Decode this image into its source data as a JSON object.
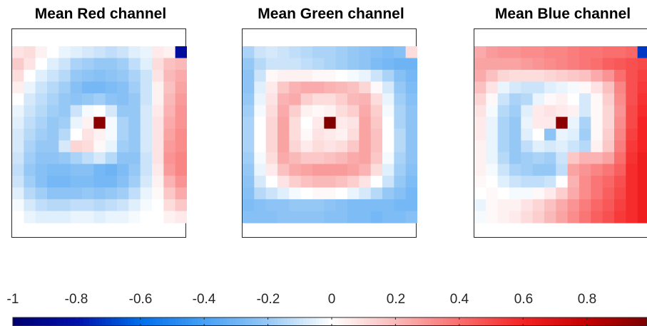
{
  "chart_data": {
    "type": "heatmap",
    "layout": "three panels, shared colorbar at bottom",
    "colormap": "diverging blue-white-red",
    "clim": [
      -1,
      1
    ],
    "panels": [
      {
        "title": "Mean Red channel",
        "grid": "15x15",
        "values": [
          [
            0.08,
            0.1,
            0.04,
            0.0,
            -0.04,
            -0.06,
            -0.08,
            -0.1,
            -0.12,
            -0.1,
            -0.06,
            -0.04,
            0.06,
            0.04,
            -0.85
          ],
          [
            0.15,
            0.08,
            0.0,
            -0.06,
            -0.1,
            -0.16,
            -0.18,
            -0.2,
            -0.2,
            -0.18,
            -0.12,
            -0.06,
            0.1,
            0.18,
            0.2
          ],
          [
            0.1,
            0.0,
            -0.06,
            -0.1,
            -0.14,
            -0.2,
            -0.22,
            -0.24,
            -0.22,
            -0.2,
            -0.16,
            -0.1,
            0.08,
            0.2,
            0.24
          ],
          [
            0.05,
            -0.04,
            -0.1,
            -0.14,
            -0.18,
            -0.24,
            -0.28,
            -0.28,
            -0.26,
            -0.24,
            -0.18,
            -0.1,
            0.04,
            0.18,
            0.26
          ],
          [
            0.0,
            -0.08,
            -0.12,
            -0.16,
            -0.2,
            -0.22,
            -0.2,
            -0.18,
            -0.22,
            -0.24,
            -0.2,
            -0.1,
            0.04,
            0.2,
            0.28
          ],
          [
            -0.04,
            -0.1,
            -0.14,
            -0.18,
            -0.2,
            -0.1,
            -0.02,
            0.0,
            -0.08,
            -0.2,
            -0.2,
            -0.08,
            0.06,
            0.22,
            0.3
          ],
          [
            -0.06,
            -0.12,
            -0.16,
            -0.2,
            -0.18,
            -0.04,
            0.04,
            0.95,
            -0.02,
            -0.16,
            -0.2,
            -0.08,
            0.08,
            0.24,
            0.3
          ],
          [
            -0.08,
            -0.14,
            -0.18,
            -0.2,
            -0.14,
            0.0,
            0.08,
            0.04,
            -0.02,
            -0.16,
            -0.2,
            -0.08,
            0.08,
            0.26,
            0.32
          ],
          [
            -0.08,
            -0.16,
            -0.2,
            -0.2,
            -0.08,
            0.12,
            0.1,
            0.02,
            -0.04,
            -0.18,
            -0.2,
            -0.08,
            0.08,
            0.28,
            0.32
          ],
          [
            -0.1,
            -0.18,
            -0.22,
            -0.22,
            -0.2,
            -0.16,
            -0.12,
            -0.08,
            -0.14,
            -0.22,
            -0.22,
            -0.1,
            0.08,
            0.3,
            0.34
          ],
          [
            -0.12,
            -0.2,
            -0.24,
            -0.26,
            -0.26,
            -0.24,
            -0.24,
            -0.28,
            -0.3,
            -0.26,
            -0.2,
            -0.1,
            0.06,
            0.28,
            0.34
          ],
          [
            -0.1,
            -0.18,
            -0.24,
            -0.28,
            -0.28,
            -0.26,
            -0.26,
            -0.28,
            -0.28,
            -0.24,
            -0.18,
            -0.08,
            0.04,
            0.22,
            0.3
          ],
          [
            -0.06,
            -0.14,
            -0.18,
            -0.22,
            -0.22,
            -0.22,
            -0.2,
            -0.22,
            -0.2,
            -0.18,
            -0.12,
            -0.04,
            0.02,
            0.16,
            0.24
          ],
          [
            -0.02,
            -0.08,
            -0.12,
            -0.14,
            -0.14,
            -0.12,
            -0.12,
            -0.14,
            -0.12,
            -0.1,
            -0.06,
            -0.02,
            0.0,
            0.1,
            0.16
          ],
          [
            0.0,
            -0.04,
            -0.06,
            -0.06,
            -0.06,
            -0.04,
            -0.04,
            -0.06,
            -0.04,
            -0.04,
            -0.02,
            0.0,
            0.0,
            0.04,
            0.06
          ]
        ]
      },
      {
        "title": "Mean Green channel",
        "grid": "15x15",
        "values": [
          [
            -0.16,
            -0.1,
            -0.08,
            -0.1,
            -0.12,
            -0.14,
            -0.16,
            -0.16,
            -0.18,
            -0.2,
            -0.22,
            -0.24,
            -0.26,
            -0.24,
            0.1
          ],
          [
            -0.2,
            -0.14,
            -0.1,
            -0.1,
            -0.1,
            -0.12,
            -0.14,
            -0.16,
            -0.18,
            -0.2,
            -0.22,
            -0.26,
            -0.28,
            -0.3,
            -0.3
          ],
          [
            -0.22,
            -0.1,
            0.02,
            0.04,
            0.04,
            0.04,
            0.02,
            0.02,
            0.0,
            -0.02,
            -0.04,
            -0.1,
            -0.16,
            -0.24,
            -0.28
          ],
          [
            -0.22,
            -0.06,
            0.06,
            0.16,
            0.22,
            0.24,
            0.24,
            0.22,
            0.2,
            0.18,
            0.12,
            0.02,
            -0.08,
            -0.2,
            -0.26
          ],
          [
            -0.2,
            -0.04,
            0.08,
            0.22,
            0.24,
            0.14,
            0.1,
            0.1,
            0.14,
            0.2,
            0.22,
            0.1,
            -0.04,
            -0.18,
            -0.24
          ],
          [
            -0.18,
            -0.02,
            0.1,
            0.24,
            0.14,
            0.04,
            0.02,
            0.04,
            0.1,
            0.14,
            0.24,
            0.14,
            -0.02,
            -0.16,
            -0.22
          ],
          [
            -0.16,
            0.0,
            0.12,
            0.26,
            0.1,
            0.0,
            0.06,
            0.98,
            0.06,
            0.08,
            0.26,
            0.16,
            0.0,
            -0.16,
            -0.22
          ],
          [
            -0.16,
            0.0,
            0.12,
            0.26,
            0.1,
            0.02,
            0.08,
            0.06,
            0.04,
            0.1,
            0.26,
            0.18,
            0.0,
            -0.14,
            -0.22
          ],
          [
            -0.16,
            0.0,
            0.12,
            0.26,
            0.12,
            0.06,
            0.1,
            0.08,
            0.1,
            0.16,
            0.26,
            0.18,
            0.0,
            -0.14,
            -0.22
          ],
          [
            -0.18,
            -0.02,
            0.1,
            0.24,
            0.2,
            0.16,
            0.16,
            0.18,
            0.2,
            0.24,
            0.26,
            0.16,
            -0.02,
            -0.16,
            -0.22
          ],
          [
            -0.2,
            -0.04,
            0.06,
            0.18,
            0.24,
            0.26,
            0.28,
            0.28,
            0.28,
            0.26,
            0.22,
            0.1,
            -0.06,
            -0.18,
            -0.24
          ],
          [
            -0.22,
            -0.08,
            0.0,
            0.08,
            0.14,
            0.18,
            0.2,
            0.2,
            0.18,
            0.14,
            0.08,
            0.0,
            -0.1,
            -0.2,
            -0.26
          ],
          [
            -0.24,
            -0.14,
            -0.1,
            -0.06,
            -0.02,
            0.0,
            0.02,
            0.02,
            0.0,
            -0.04,
            -0.08,
            -0.14,
            -0.2,
            -0.24,
            -0.28
          ],
          [
            -0.26,
            -0.24,
            -0.22,
            -0.22,
            -0.2,
            -0.2,
            -0.2,
            -0.22,
            -0.24,
            -0.26,
            -0.26,
            -0.26,
            -0.26,
            -0.28,
            -0.28
          ],
          [
            -0.24,
            -0.24,
            -0.24,
            -0.22,
            -0.22,
            -0.22,
            -0.22,
            -0.24,
            -0.24,
            -0.26,
            -0.26,
            -0.28,
            -0.26,
            -0.26,
            -0.24
          ]
        ]
      },
      {
        "title": "Mean Blue channel",
        "grid": "15x15",
        "values": [
          [
            0.24,
            0.28,
            0.3,
            0.3,
            0.32,
            0.32,
            0.34,
            0.34,
            0.36,
            0.38,
            0.38,
            0.4,
            0.4,
            0.42,
            -0.72
          ],
          [
            0.26,
            0.26,
            0.26,
            0.26,
            0.28,
            0.3,
            0.32,
            0.34,
            0.36,
            0.38,
            0.4,
            0.44,
            0.46,
            0.48,
            0.5
          ],
          [
            0.24,
            0.18,
            0.12,
            0.1,
            0.1,
            0.1,
            0.12,
            0.14,
            0.16,
            0.18,
            0.24,
            0.3,
            0.4,
            0.48,
            0.52
          ],
          [
            0.18,
            0.08,
            -0.04,
            -0.08,
            -0.1,
            -0.1,
            -0.06,
            -0.04,
            -0.02,
            0.02,
            0.08,
            0.18,
            0.34,
            0.48,
            0.54
          ],
          [
            0.12,
            0.02,
            -0.1,
            -0.16,
            -0.14,
            -0.04,
            0.02,
            0.04,
            0.0,
            -0.08,
            0.02,
            0.14,
            0.32,
            0.48,
            0.56
          ],
          [
            0.08,
            -0.02,
            -0.14,
            -0.18,
            -0.06,
            0.06,
            0.08,
            0.06,
            0.04,
            -0.08,
            0.02,
            0.12,
            0.3,
            0.5,
            0.58
          ],
          [
            0.06,
            -0.04,
            -0.16,
            -0.2,
            -0.04,
            0.06,
            0.06,
            0.95,
            -0.04,
            -0.16,
            0.02,
            0.12,
            0.32,
            0.5,
            0.6
          ],
          [
            0.06,
            -0.04,
            -0.16,
            -0.2,
            -0.06,
            0.0,
            -0.22,
            -0.04,
            -0.06,
            -0.18,
            0.02,
            0.14,
            0.34,
            0.52,
            0.6
          ],
          [
            0.04,
            -0.04,
            -0.16,
            -0.2,
            -0.12,
            -0.06,
            -0.08,
            -0.06,
            -0.1,
            -0.14,
            0.04,
            0.16,
            0.36,
            0.54,
            0.6
          ],
          [
            0.04,
            -0.04,
            -0.14,
            -0.2,
            -0.18,
            -0.16,
            -0.18,
            -0.1,
            0.16,
            0.22,
            0.22,
            0.26,
            0.4,
            0.56,
            0.62
          ],
          [
            0.04,
            -0.02,
            -0.1,
            -0.16,
            -0.18,
            -0.2,
            -0.2,
            -0.12,
            0.26,
            0.3,
            0.34,
            0.38,
            0.44,
            0.58,
            0.62
          ],
          [
            0.02,
            0.0,
            -0.06,
            -0.1,
            -0.12,
            -0.12,
            -0.1,
            0.0,
            0.22,
            0.32,
            0.38,
            0.42,
            0.48,
            0.58,
            0.62
          ],
          [
            0.0,
            0.02,
            0.0,
            -0.02,
            -0.02,
            0.02,
            0.06,
            0.14,
            0.24,
            0.32,
            0.38,
            0.44,
            0.5,
            0.58,
            0.62
          ],
          [
            -0.04,
            0.02,
            0.04,
            0.04,
            0.08,
            0.12,
            0.18,
            0.24,
            0.3,
            0.36,
            0.42,
            0.46,
            0.52,
            0.58,
            0.62
          ],
          [
            -0.02,
            0.02,
            0.04,
            0.06,
            0.1,
            0.14,
            0.2,
            0.26,
            0.32,
            0.38,
            0.44,
            0.48,
            0.54,
            0.58,
            0.62
          ]
        ]
      }
    ],
    "colorbar": {
      "ticks": [
        -1,
        -0.8,
        -0.6,
        -0.4,
        -0.2,
        0,
        0.2,
        0.4,
        0.6,
        0.8
      ],
      "tick_labels": [
        "-1",
        "-0.8",
        "-0.6",
        "-0.4",
        "-0.2",
        "0",
        "0.2",
        "0.4",
        "0.6",
        "0.8"
      ],
      "location": "bottom"
    }
  }
}
